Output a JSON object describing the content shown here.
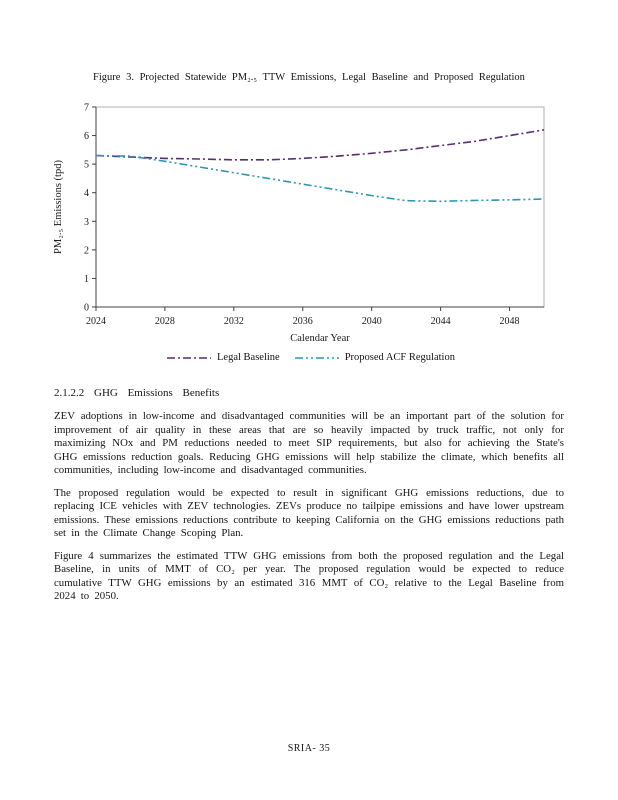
{
  "page": {
    "footer": "SRIA- 35"
  },
  "figure": {
    "caption": "Figure 3. Projected Statewide PM₂.₅ TTW Emissions, Legal Baseline and Proposed Regulation"
  },
  "chart_data": {
    "type": "line",
    "title": "",
    "xlabel": "Calendar Year",
    "ylabel": "PM₂.₅ Emissions (tpd)",
    "xlim": [
      2024,
      2050
    ],
    "ylim": [
      0,
      7
    ],
    "x_ticks": [
      2024,
      2028,
      2032,
      2036,
      2040,
      2044,
      2048
    ],
    "y_ticks": [
      0,
      1,
      2,
      3,
      4,
      5,
      6,
      7
    ],
    "grid": false,
    "legend_position": "bottom",
    "x": [
      2024,
      2026,
      2028,
      2030,
      2032,
      2034,
      2036,
      2038,
      2040,
      2042,
      2044,
      2046,
      2048,
      2050
    ],
    "series": [
      {
        "name": "Legal Baseline",
        "color": "#5B2C6F",
        "dash": "8 3 2 3",
        "values": [
          5.3,
          5.25,
          5.2,
          5.18,
          5.15,
          5.15,
          5.2,
          5.28,
          5.38,
          5.5,
          5.65,
          5.8,
          6.0,
          6.2
        ]
      },
      {
        "name": "Proposed ACF Regulation",
        "color": "#2E96B4",
        "dash": "8 3 2 3 2 3",
        "values": [
          5.3,
          5.28,
          5.1,
          4.9,
          4.7,
          4.5,
          4.3,
          4.1,
          3.9,
          3.72,
          3.7,
          3.73,
          3.75,
          3.78
        ]
      }
    ]
  },
  "section": {
    "heading": "2.1.2.2 GHG Emissions Benefits",
    "paragraphs": [
      "ZEV adoptions in low-income and disadvantaged communities will be an important part of the solution for improvement of air quality in these areas that are so heavily impacted by truck traffic, not only for maximizing NOx and PM reductions needed to meet SIP requirements, but also for achieving the State's GHG emissions reduction goals. Reducing GHG emissions will help stabilize the climate, which benefits all communities, including low-income and disadvantaged communities.",
      "The proposed regulation would be expected to result in significant GHG emissions reductions, due to replacing ICE vehicles with ZEV technologies. ZEVs produce no tailpipe emissions and have lower upstream emissions. These emissions reductions contribute to keeping California on the GHG emissions reductions path set in the Climate Change Scoping Plan.",
      "Figure 4 summarizes the estimated TTW GHG emissions from both the proposed regulation and the Legal Baseline, in units of MMT of CO₂ per year. The proposed regulation would be expected to reduce cumulative TTW GHG emissions by an estimated 316 MMT of CO₂ relative to the Legal Baseline from 2024 to 2050."
    ]
  }
}
